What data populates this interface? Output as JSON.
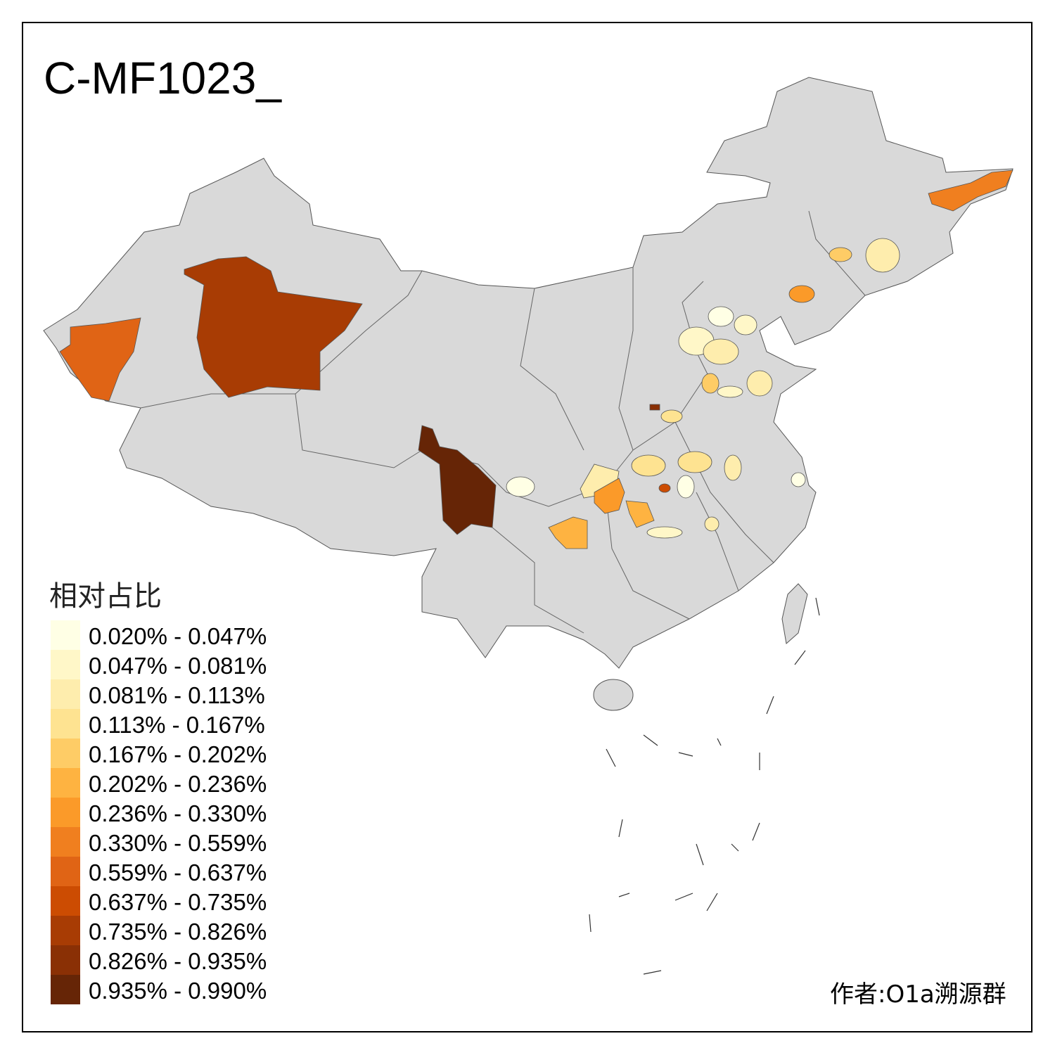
{
  "title": "C-MF1023_",
  "legend": {
    "title": "相对占比",
    "items": [
      {
        "label": "0.020% - 0.047%",
        "color": "#FFFFE5"
      },
      {
        "label": "0.047% - 0.081%",
        "color": "#FFF7C8"
      },
      {
        "label": "0.081% - 0.113%",
        "color": "#FEEDAD"
      },
      {
        "label": "0.113% - 0.167%",
        "color": "#FEE391"
      },
      {
        "label": "0.167% - 0.202%",
        "color": "#FECC66"
      },
      {
        "label": "0.202% - 0.236%",
        "color": "#FEB341"
      },
      {
        "label": "0.236% - 0.330%",
        "color": "#FB9A29"
      },
      {
        "label": "0.330% - 0.559%",
        "color": "#F07F1F"
      },
      {
        "label": "0.559% - 0.637%",
        "color": "#E06415"
      },
      {
        "label": "0.637% - 0.735%",
        "color": "#CC4C02"
      },
      {
        "label": "0.735% - 0.826%",
        "color": "#A83C04"
      },
      {
        "label": "0.826% - 0.935%",
        "color": "#8A3005"
      },
      {
        "label": "0.935% - 0.990%",
        "color": "#662506"
      }
    ]
  },
  "author": "作者:O1a溯源群",
  "map_colors": {
    "base": "#D9D9D9",
    "border": "#555555"
  }
}
